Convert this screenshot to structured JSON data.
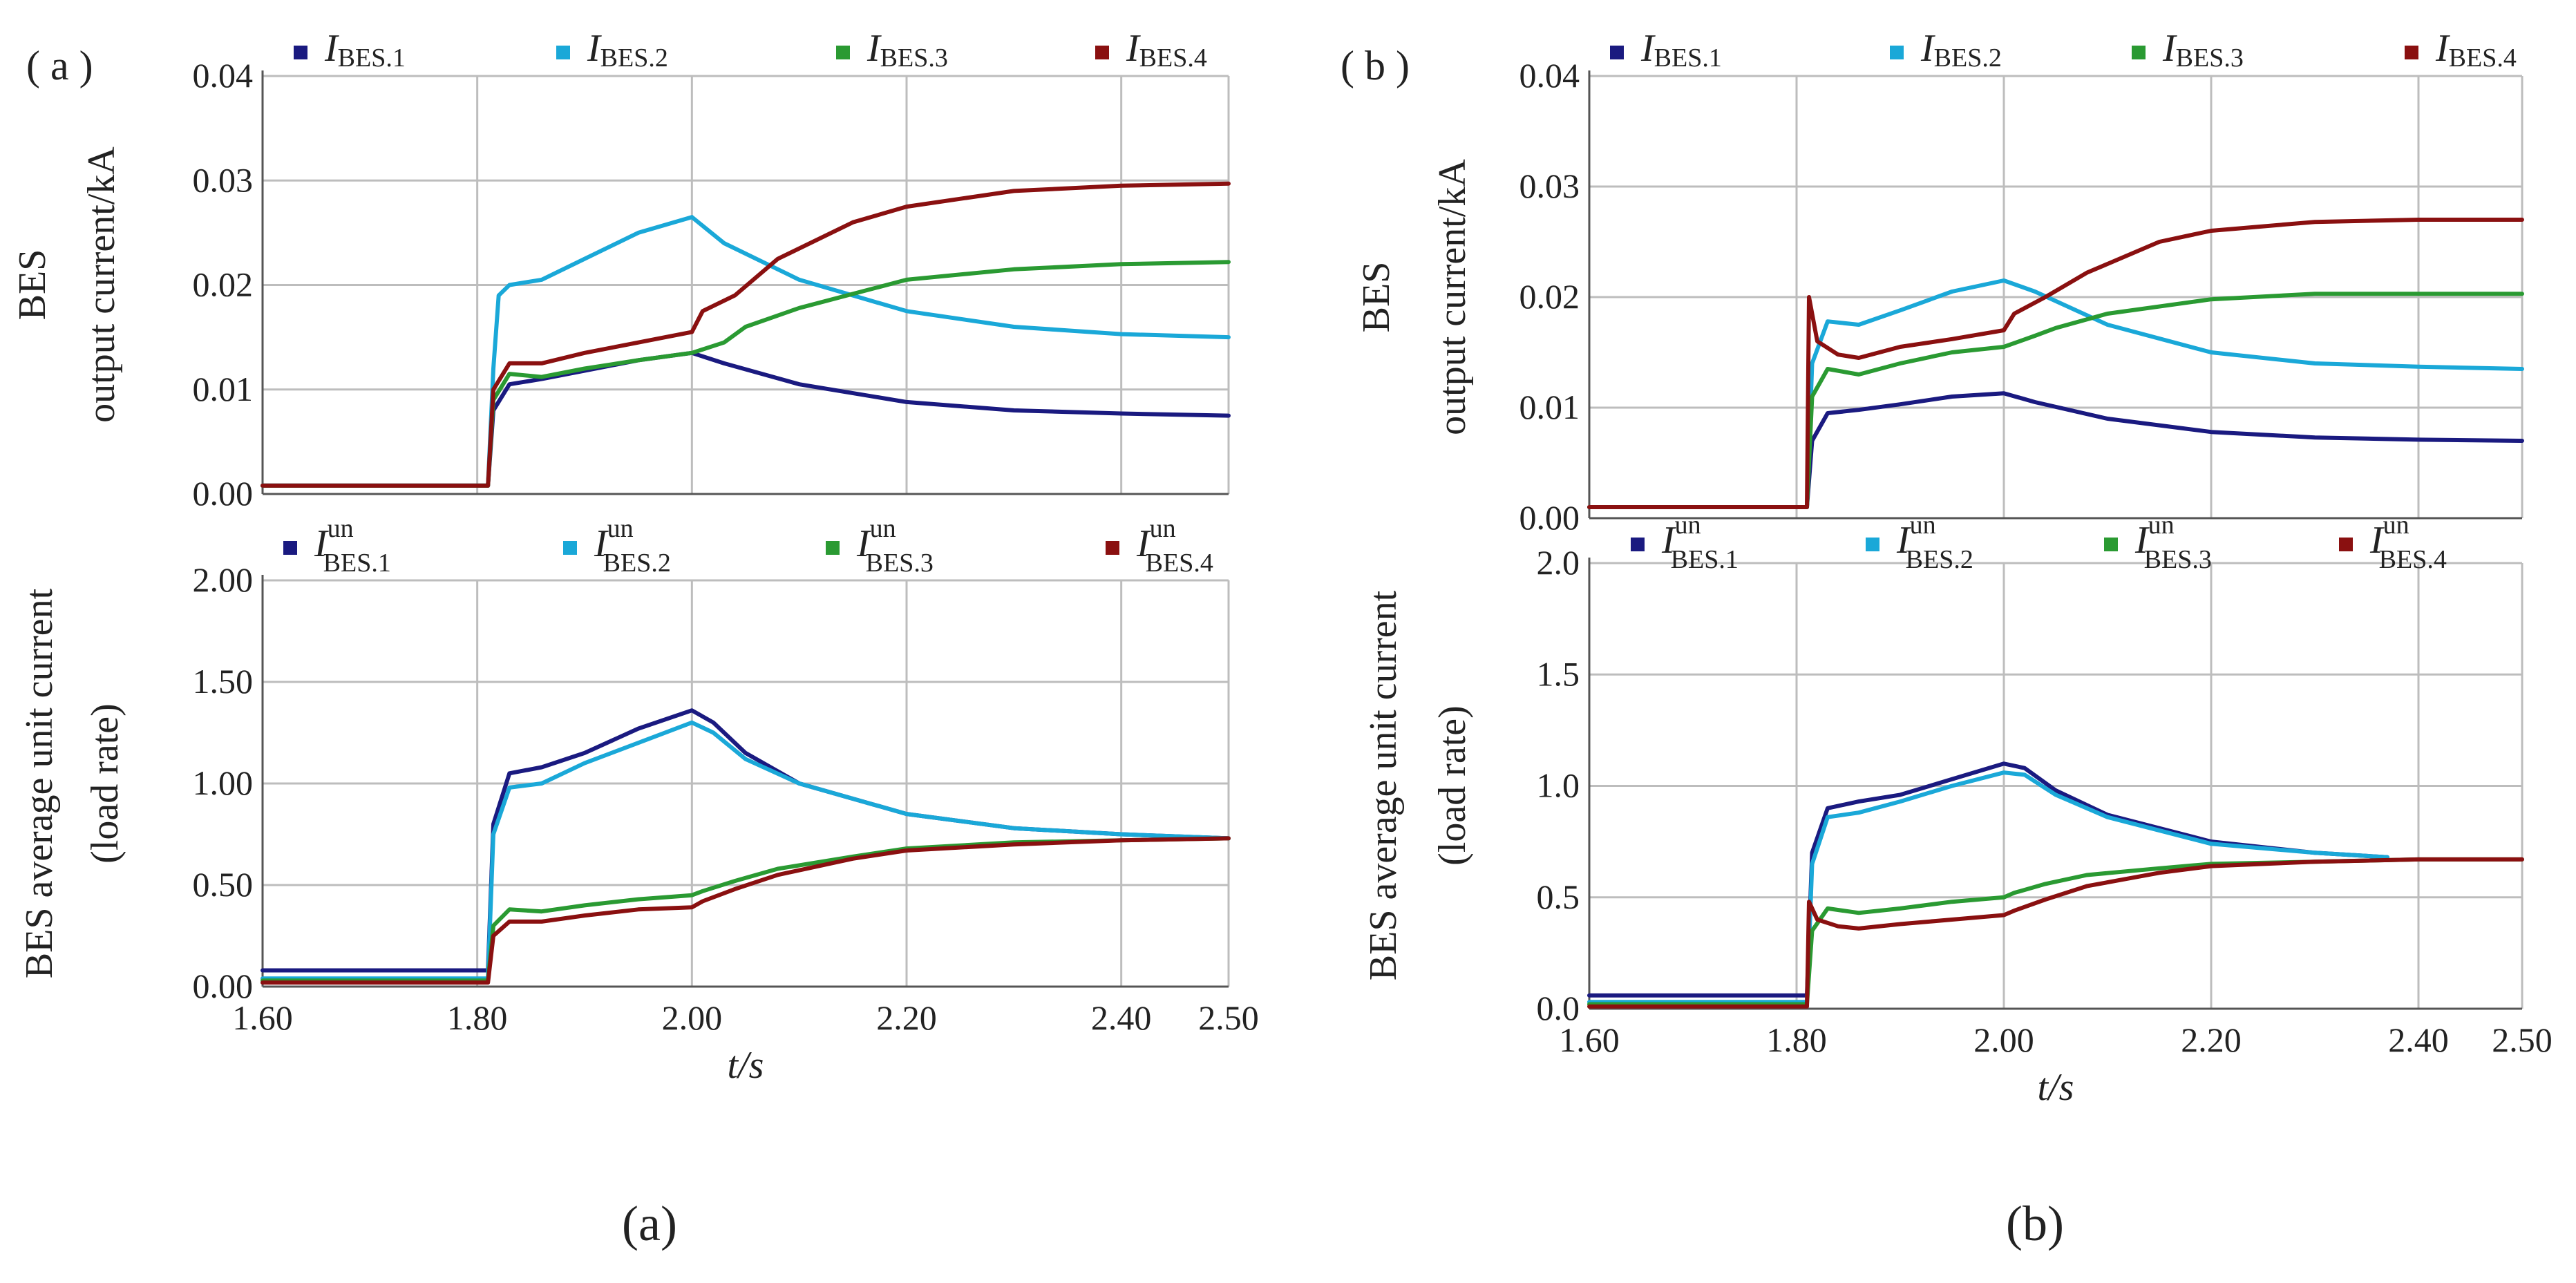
{
  "figure": {
    "caption_a": "(a)",
    "caption_b": "(b)"
  },
  "colors": {
    "bes1": "#1a1a80",
    "bes2": "#1aa8d8",
    "bes3": "#2a9a32",
    "bes4": "#8a1010"
  },
  "chart_data": [
    {
      "type": "line",
      "panel": "a-top",
      "tag": "( a )",
      "ylabel_1": "BES",
      "ylabel_2": "output current/kA",
      "xlim": [
        1.6,
        2.5
      ],
      "ylim": [
        0,
        0.04
      ],
      "xticks": [
        "1.60",
        "1.80",
        "2.00",
        "2.20",
        "2.40",
        "2.50"
      ],
      "yticks": [
        "0.00",
        "0.01",
        "0.02",
        "0.03",
        "0.04"
      ],
      "legend": [
        {
          "main": "I",
          "sub": "BES.1",
          "sup": ""
        },
        {
          "main": "I",
          "sub": "BES.2",
          "sup": ""
        },
        {
          "main": "I",
          "sub": "BES.3",
          "sup": ""
        },
        {
          "main": "I",
          "sub": "BES.4",
          "sup": ""
        }
      ],
      "series": [
        {
          "name": "I_BES.1",
          "x": [
            1.6,
            1.81,
            1.815,
            1.83,
            1.86,
            1.9,
            1.95,
            2.0,
            2.03,
            2.1,
            2.2,
            2.3,
            2.4,
            2.5
          ],
          "y": [
            0.0008,
            0.0008,
            0.008,
            0.0105,
            0.011,
            0.0118,
            0.0128,
            0.0135,
            0.0125,
            0.0105,
            0.0088,
            0.008,
            0.0077,
            0.0075
          ]
        },
        {
          "name": "I_BES.2",
          "x": [
            1.6,
            1.81,
            1.815,
            1.82,
            1.83,
            1.86,
            1.9,
            1.95,
            2.0,
            2.03,
            2.1,
            2.2,
            2.3,
            2.4,
            2.5
          ],
          "y": [
            0.0008,
            0.0008,
            0.012,
            0.019,
            0.02,
            0.0205,
            0.0225,
            0.025,
            0.0265,
            0.024,
            0.0205,
            0.0175,
            0.016,
            0.0153,
            0.015
          ]
        },
        {
          "name": "I_BES.3",
          "x": [
            1.6,
            1.81,
            1.815,
            1.83,
            1.86,
            1.9,
            1.95,
            2.0,
            2.03,
            2.05,
            2.1,
            2.2,
            2.3,
            2.4,
            2.5
          ],
          "y": [
            0.0008,
            0.0008,
            0.009,
            0.0115,
            0.0112,
            0.012,
            0.0128,
            0.0135,
            0.0145,
            0.016,
            0.0178,
            0.0205,
            0.0215,
            0.022,
            0.0222
          ]
        },
        {
          "name": "I_BES.4",
          "x": [
            1.6,
            1.81,
            1.815,
            1.83,
            1.86,
            1.9,
            1.95,
            2.0,
            2.01,
            2.04,
            2.08,
            2.15,
            2.2,
            2.3,
            2.4,
            2.5
          ],
          "y": [
            0.0008,
            0.0008,
            0.01,
            0.0125,
            0.0125,
            0.0135,
            0.0145,
            0.0155,
            0.0175,
            0.019,
            0.0225,
            0.026,
            0.0275,
            0.029,
            0.0295,
            0.0297
          ]
        }
      ]
    },
    {
      "type": "line",
      "panel": "a-bottom",
      "ylabel_1": "BES   average unit current",
      "ylabel_2": "(load rate)",
      "xlabel": "t/s",
      "xlim": [
        1.6,
        2.5
      ],
      "ylim": [
        0,
        2
      ],
      "xticks": [
        "1.60",
        "1.80",
        "2.00",
        "2.20",
        "2.40",
        "2.50"
      ],
      "yticks": [
        "0.00",
        "0.50",
        "1.00",
        "1.50",
        "2.00"
      ],
      "legend": [
        {
          "main": "I",
          "sub": "BES.1",
          "sup": "un"
        },
        {
          "main": "I",
          "sub": "BES.2",
          "sup": "un"
        },
        {
          "main": "I",
          "sub": "BES.3",
          "sup": "un"
        },
        {
          "main": "I",
          "sub": "BES.4",
          "sup": "un"
        }
      ],
      "series": [
        {
          "name": "I_un_BES.1",
          "x": [
            1.6,
            1.81,
            1.815,
            1.83,
            1.86,
            1.9,
            1.95,
            2.0,
            2.02,
            2.05,
            2.1,
            2.2,
            2.3,
            2.4,
            2.5
          ],
          "y": [
            0.08,
            0.08,
            0.8,
            1.05,
            1.08,
            1.15,
            1.27,
            1.36,
            1.3,
            1.15,
            1.0,
            0.85,
            0.78,
            0.75,
            0.73
          ]
        },
        {
          "name": "I_un_BES.2",
          "x": [
            1.6,
            1.81,
            1.815,
            1.83,
            1.86,
            1.9,
            1.95,
            2.0,
            2.02,
            2.05,
            2.1,
            2.2,
            2.3,
            2.4,
            2.5
          ],
          "y": [
            0.04,
            0.04,
            0.75,
            0.98,
            1.0,
            1.1,
            1.2,
            1.3,
            1.25,
            1.12,
            1.0,
            0.85,
            0.78,
            0.75,
            0.73
          ]
        },
        {
          "name": "I_un_BES.3",
          "x": [
            1.6,
            1.81,
            1.815,
            1.83,
            1.86,
            1.9,
            1.95,
            2.0,
            2.01,
            2.04,
            2.08,
            2.15,
            2.2,
            2.3,
            2.4,
            2.5
          ],
          "y": [
            0.03,
            0.03,
            0.3,
            0.38,
            0.37,
            0.4,
            0.43,
            0.45,
            0.47,
            0.52,
            0.58,
            0.64,
            0.68,
            0.71,
            0.72,
            0.73
          ]
        },
        {
          "name": "I_un_BES.4",
          "x": [
            1.6,
            1.81,
            1.815,
            1.83,
            1.86,
            1.9,
            1.95,
            2.0,
            2.01,
            2.04,
            2.08,
            2.15,
            2.2,
            2.3,
            2.4,
            2.5
          ],
          "y": [
            0.02,
            0.02,
            0.25,
            0.32,
            0.32,
            0.35,
            0.38,
            0.39,
            0.42,
            0.48,
            0.55,
            0.63,
            0.67,
            0.7,
            0.72,
            0.73
          ]
        }
      ]
    },
    {
      "type": "line",
      "panel": "b-top",
      "tag": "( b )",
      "ylabel_1": "BES",
      "ylabel_2": "output current/kA",
      "xlim": [
        1.6,
        2.5
      ],
      "ylim": [
        0,
        0.04
      ],
      "xticks": [
        "1.60",
        "1.80",
        "2.00",
        "2.20",
        "2.40",
        "2.50"
      ],
      "yticks": [
        "0.00",
        "0.01",
        "0.02",
        "0.03",
        "0.04"
      ],
      "legend": [
        {
          "main": "I",
          "sub": "BES.1",
          "sup": ""
        },
        {
          "main": "I",
          "sub": "BES.2",
          "sup": ""
        },
        {
          "main": "I",
          "sub": "BES.3",
          "sup": ""
        },
        {
          "main": "I",
          "sub": "BES.4",
          "sup": ""
        }
      ],
      "series": [
        {
          "name": "I_BES.1",
          "x": [
            1.6,
            1.81,
            1.815,
            1.83,
            1.86,
            1.9,
            1.95,
            2.0,
            2.03,
            2.1,
            2.2,
            2.3,
            2.4,
            2.5
          ],
          "y": [
            0.001,
            0.001,
            0.007,
            0.0095,
            0.0098,
            0.0103,
            0.011,
            0.0113,
            0.0105,
            0.009,
            0.0078,
            0.0073,
            0.0071,
            0.007
          ]
        },
        {
          "name": "I_BES.2",
          "x": [
            1.6,
            1.81,
            1.815,
            1.83,
            1.86,
            1.9,
            1.95,
            2.0,
            2.03,
            2.1,
            2.2,
            2.3,
            2.4,
            2.5
          ],
          "y": [
            0.001,
            0.001,
            0.014,
            0.0178,
            0.0175,
            0.0188,
            0.0205,
            0.0215,
            0.0205,
            0.0175,
            0.015,
            0.014,
            0.0137,
            0.0135
          ]
        },
        {
          "name": "I_BES.3",
          "x": [
            1.6,
            1.81,
            1.815,
            1.83,
            1.86,
            1.9,
            1.95,
            2.0,
            2.03,
            2.05,
            2.1,
            2.2,
            2.3,
            2.4,
            2.5
          ],
          "y": [
            0.001,
            0.001,
            0.011,
            0.0135,
            0.013,
            0.014,
            0.015,
            0.0155,
            0.0165,
            0.0172,
            0.0185,
            0.0198,
            0.0203,
            0.0203,
            0.0203
          ]
        },
        {
          "name": "I_BES.4",
          "x": [
            1.6,
            1.81,
            1.812,
            1.82,
            1.84,
            1.86,
            1.9,
            1.95,
            2.0,
            2.01,
            2.04,
            2.08,
            2.15,
            2.2,
            2.3,
            2.4,
            2.5
          ],
          "y": [
            0.001,
            0.001,
            0.02,
            0.016,
            0.0148,
            0.0145,
            0.0155,
            0.0162,
            0.017,
            0.0185,
            0.02,
            0.0222,
            0.025,
            0.026,
            0.0268,
            0.027,
            0.027
          ]
        }
      ]
    },
    {
      "type": "line",
      "panel": "b-bottom",
      "ylabel_1": "BES average unit current",
      "ylabel_2": "(load rate)",
      "xlabel": "t/s",
      "xlim": [
        1.6,
        2.5
      ],
      "ylim": [
        0,
        2
      ],
      "xticks": [
        "1.60",
        "1.80",
        "2.00",
        "2.20",
        "2.40",
        "2.50"
      ],
      "yticks": [
        "0.0",
        "0.5",
        "1.0",
        "1.5",
        "2.0"
      ],
      "legend": [
        {
          "main": "I",
          "sub": "BES.1",
          "sup": "un"
        },
        {
          "main": "I",
          "sub": "BES.2",
          "sup": "un"
        },
        {
          "main": "I",
          "sub": "BES.3",
          "sup": "un"
        },
        {
          "main": "I",
          "sub": "BES.4",
          "sup": "un"
        }
      ],
      "series": [
        {
          "name": "I_un_BES.1",
          "x": [
            1.6,
            1.81,
            1.815,
            1.83,
            1.86,
            1.9,
            1.95,
            2.0,
            2.02,
            2.05,
            2.1,
            2.2,
            2.3,
            2.37
          ],
          "y": [
            0.06,
            0.06,
            0.7,
            0.9,
            0.93,
            0.96,
            1.03,
            1.1,
            1.08,
            0.98,
            0.87,
            0.75,
            0.7,
            0.68
          ]
        },
        {
          "name": "I_un_BES.2",
          "x": [
            1.6,
            1.81,
            1.815,
            1.83,
            1.86,
            1.9,
            1.95,
            2.0,
            2.02,
            2.05,
            2.1,
            2.2,
            2.3,
            2.37
          ],
          "y": [
            0.03,
            0.03,
            0.65,
            0.86,
            0.88,
            0.93,
            1.0,
            1.06,
            1.05,
            0.96,
            0.86,
            0.74,
            0.7,
            0.68
          ]
        },
        {
          "name": "I_un_BES.3",
          "x": [
            1.6,
            1.81,
            1.815,
            1.83,
            1.86,
            1.9,
            1.95,
            2.0,
            2.01,
            2.04,
            2.08,
            2.15,
            2.2,
            2.3,
            2.4,
            2.5
          ],
          "y": [
            0.02,
            0.02,
            0.35,
            0.45,
            0.43,
            0.45,
            0.48,
            0.5,
            0.52,
            0.56,
            0.6,
            0.63,
            0.65,
            0.66,
            0.67,
            0.67
          ]
        },
        {
          "name": "I_un_BES.4",
          "x": [
            1.6,
            1.81,
            1.812,
            1.82,
            1.84,
            1.86,
            1.9,
            1.95,
            2.0,
            2.01,
            2.04,
            2.08,
            2.15,
            2.2,
            2.3,
            2.4,
            2.5
          ],
          "y": [
            0.01,
            0.01,
            0.48,
            0.4,
            0.37,
            0.36,
            0.38,
            0.4,
            0.42,
            0.44,
            0.49,
            0.55,
            0.61,
            0.64,
            0.66,
            0.67,
            0.67
          ]
        }
      ]
    }
  ]
}
